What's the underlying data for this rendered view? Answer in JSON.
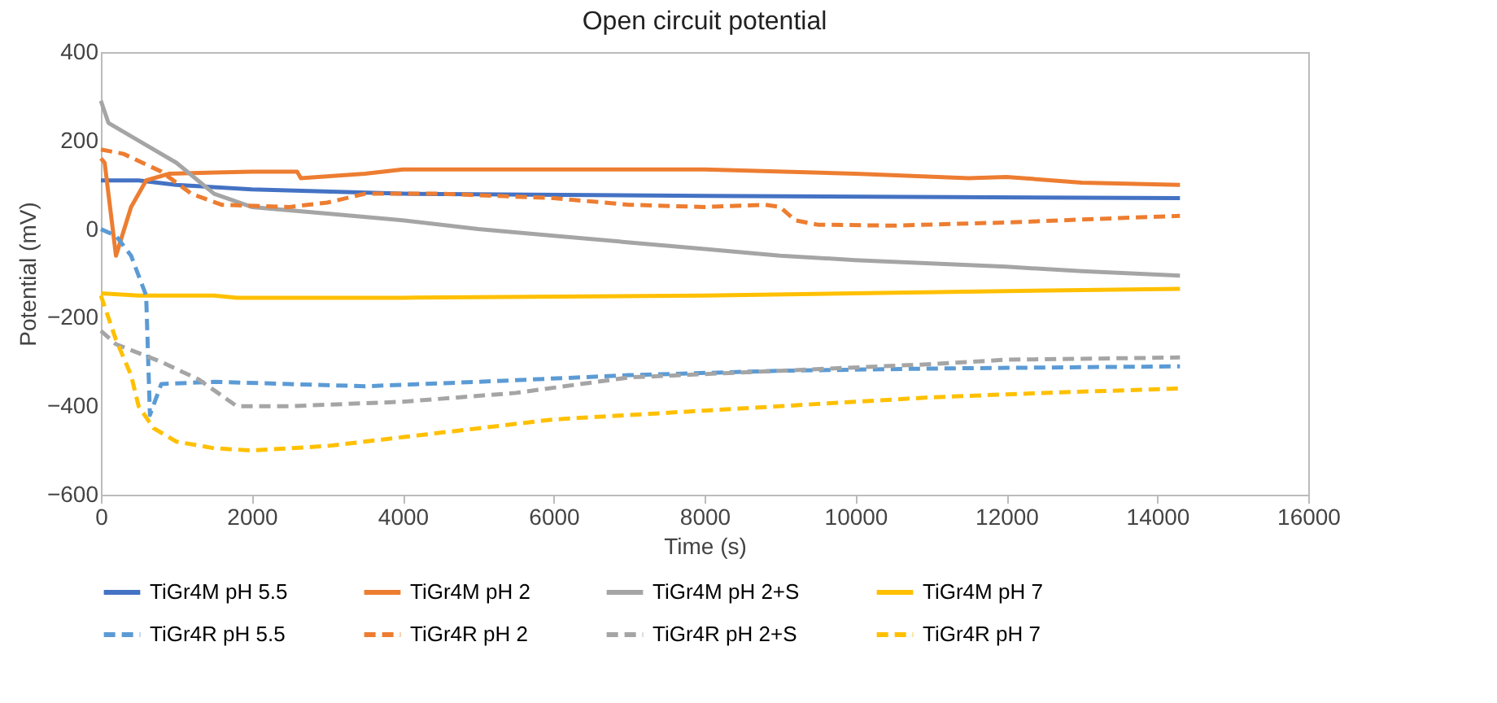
{
  "chart_data": {
    "type": "line",
    "title": "Open circuit potential",
    "xlabel": "Time (s)",
    "ylabel": "Potential (mV)",
    "xlim": [
      0,
      16000
    ],
    "xticks": [
      0,
      2000,
      4000,
      6000,
      8000,
      10000,
      12000,
      14000,
      16000
    ],
    "ylim": [
      -600,
      400
    ],
    "yticks": [
      -600,
      -400,
      -200,
      0,
      200,
      400
    ],
    "grid": false,
    "legend": "bottom",
    "series": [
      {
        "name": "TiGr4M pH 5.5",
        "color": "#4472c4",
        "line_style": "solid",
        "x": [
          0,
          500,
          1000,
          2000,
          4000,
          8000,
          14300
        ],
        "values": [
          110,
          110,
          100,
          90,
          80,
          75,
          70
        ]
      },
      {
        "name": "TiGr4M pH 2",
        "color": "#ed7d31",
        "line_style": "solid",
        "x": [
          0,
          50,
          200,
          400,
          600,
          900,
          2000,
          2600,
          2650,
          3500,
          4000,
          8000,
          10000,
          11500,
          12000,
          13000,
          14300
        ],
        "values": [
          160,
          150,
          -60,
          50,
          110,
          125,
          130,
          130,
          115,
          125,
          135,
          135,
          125,
          115,
          118,
          105,
          100
        ]
      },
      {
        "name": "TiGr4M pH 2+S",
        "color": "#a5a5a5",
        "line_style": "solid",
        "x": [
          0,
          100,
          500,
          1000,
          1500,
          2000,
          3000,
          4000,
          5000,
          6000,
          7000,
          8000,
          9000,
          10000,
          12000,
          13000,
          14300
        ],
        "values": [
          290,
          240,
          200,
          150,
          80,
          50,
          35,
          20,
          0,
          -15,
          -30,
          -45,
          -60,
          -70,
          -85,
          -95,
          -105
        ]
      },
      {
        "name": "TiGr4M pH 7",
        "color": "#ffc000",
        "line_style": "solid",
        "x": [
          0,
          500,
          1500,
          1800,
          4000,
          8000,
          12000,
          14300
        ],
        "values": [
          -145,
          -150,
          -150,
          -155,
          -155,
          -150,
          -140,
          -135
        ]
      },
      {
        "name": "TiGr4R pH 5.5",
        "color": "#5b9bd5",
        "line_style": "dashed",
        "x": [
          0,
          200,
          400,
          600,
          650,
          800,
          1500,
          2500,
          3500,
          5000,
          7000,
          9000,
          11000,
          14300
        ],
        "values": [
          0,
          -15,
          -60,
          -150,
          -420,
          -350,
          -345,
          -350,
          -355,
          -345,
          -330,
          -320,
          -315,
          -310
        ]
      },
      {
        "name": "TiGr4R pH 2",
        "color": "#ed7d31",
        "line_style": "dashed",
        "x": [
          0,
          300,
          800,
          1200,
          1600,
          2500,
          3000,
          3500,
          4500,
          6000,
          7000,
          8000,
          8800,
          9000,
          9200,
          9500,
          10500,
          12000,
          13500,
          14300
        ],
        "values": [
          180,
          170,
          130,
          80,
          55,
          50,
          60,
          80,
          80,
          70,
          55,
          50,
          55,
          50,
          20,
          10,
          8,
          15,
          25,
          30
        ]
      },
      {
        "name": "TiGr4R pH 2+S",
        "color": "#a5a5a5",
        "line_style": "dashed",
        "x": [
          0,
          200,
          800,
          1300,
          1800,
          2500,
          4000,
          5500,
          7000,
          9000,
          11000,
          12000,
          14300
        ],
        "values": [
          -230,
          -260,
          -300,
          -340,
          -400,
          -400,
          -390,
          -370,
          -335,
          -320,
          -305,
          -295,
          -290
        ]
      },
      {
        "name": "TiGr4R pH 7",
        "color": "#ffc000",
        "line_style": "dashed",
        "x": [
          0,
          200,
          400,
          500,
          700,
          1000,
          1500,
          2000,
          3000,
          4000,
          5000,
          6000,
          8000,
          10000,
          11000,
          12500,
          14300
        ],
        "values": [
          -150,
          -250,
          -330,
          -400,
          -450,
          -480,
          -495,
          -500,
          -490,
          -470,
          -450,
          -430,
          -410,
          -390,
          -380,
          -370,
          -360
        ]
      }
    ]
  }
}
